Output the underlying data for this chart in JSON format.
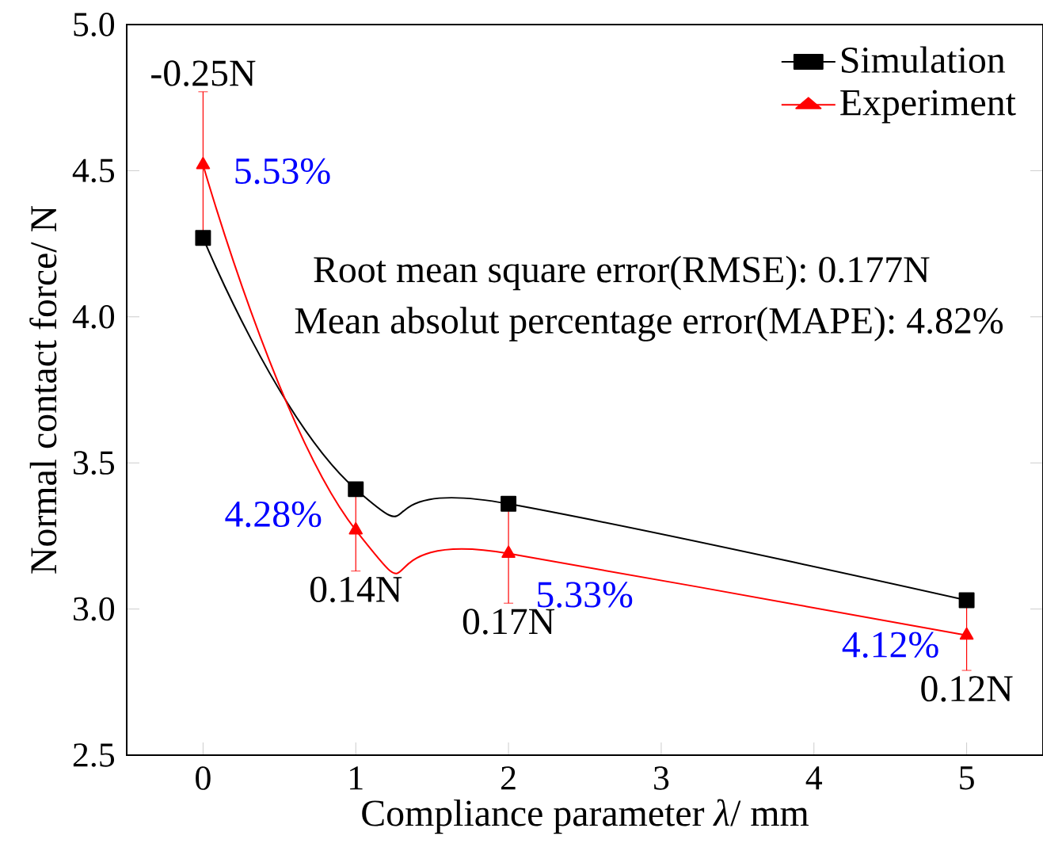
{
  "chart_data": {
    "type": "line",
    "xlabel": "Compliance parameter *λ*/ mm",
    "ylabel": "Normal contact force/ N",
    "x": [
      0,
      1,
      2,
      5
    ],
    "series": [
      {
        "name": "Simulation",
        "color": "#000000",
        "marker": "square",
        "values": [
          4.27,
          3.41,
          3.36,
          3.03
        ]
      },
      {
        "name": "Experiment",
        "color": "#ff0000",
        "marker": "triangle",
        "values": [
          4.52,
          3.27,
          3.19,
          2.91
        ],
        "errors": [
          0.25,
          0.14,
          0.17,
          0.12
        ]
      }
    ],
    "xlim": [
      -0.5,
      5.5
    ],
    "xticks": [
      0,
      1,
      2,
      3,
      4,
      5
    ],
    "ylim": [
      2.5,
      5.0
    ],
    "yticks": [
      {
        "value": 2.5,
        "label": "2.5"
      },
      {
        "value": 3.0,
        "label": "3.0"
      },
      {
        "value": 3.5,
        "label": "3.5"
      },
      {
        "value": 4.0,
        "label": "4.0"
      },
      {
        "value": 4.5,
        "label": "4.5"
      },
      {
        "value": 5.0,
        "label": "5.0"
      }
    ],
    "grid": false,
    "legend": "top right",
    "annotations": [
      "Root mean square error(RMSE): 0.177N",
      "Mean absolut percentage error(MAPE): 4.82%",
      {
        "text": "-0.25N",
        "x": 0,
        "y": 4.77
      },
      {
        "text": "0.14N",
        "x": 1,
        "y": 3.13
      },
      {
        "text": "0.17N",
        "x": 2,
        "y": 3.02
      },
      {
        "text": "0.12N",
        "x": 5,
        "y": 2.79
      },
      {
        "text": "5.53%",
        "x": 0,
        "y": 4.52
      },
      {
        "text": "4.28%",
        "x": 1,
        "y": 3.27
      },
      {
        "text": "5.33%",
        "x": 2,
        "y": 3.19
      },
      {
        "text": "4.12%",
        "x": 5,
        "y": 2.91
      }
    ]
  }
}
